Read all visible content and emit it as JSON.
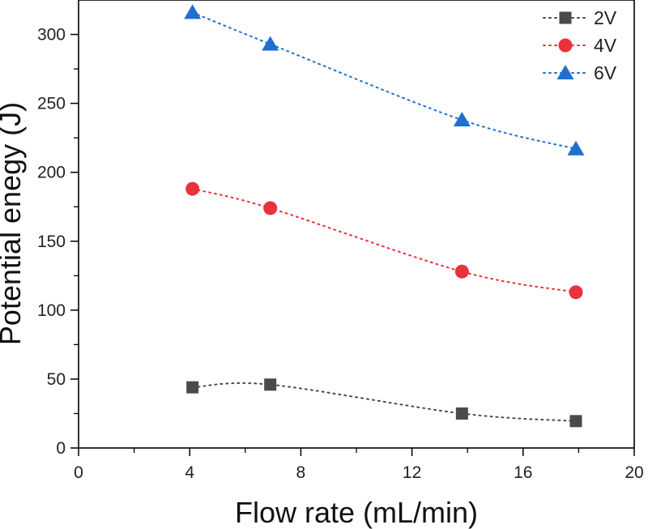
{
  "chart_data": {
    "type": "scatter",
    "xlabel": "Flow rate (mL/min)",
    "ylabel": "Potential enegy (J)",
    "xlim": [
      0,
      20
    ],
    "ylim": [
      0,
      325
    ],
    "x_ticks": [
      0,
      4,
      8,
      12,
      16,
      20
    ],
    "x_minor_ticks": [
      2,
      6,
      10,
      14,
      18
    ],
    "y_ticks": [
      0,
      50,
      100,
      150,
      200,
      250,
      300
    ],
    "y_minor_ticks": [
      25,
      75,
      125,
      175,
      225,
      275
    ],
    "grid": false,
    "legend_position": "top-right",
    "line_style": "dotted",
    "series": [
      {
        "name": "2V",
        "marker": "square",
        "color": "#4a4a4a",
        "x": [
          4.1,
          6.9,
          13.8,
          17.9
        ],
        "y": [
          44,
          46,
          25,
          19.5
        ]
      },
      {
        "name": "4V",
        "marker": "circle",
        "color": "#e8323c",
        "x": [
          4.1,
          6.9,
          13.8,
          17.9
        ],
        "y": [
          188,
          174,
          128,
          113
        ]
      },
      {
        "name": "6V",
        "marker": "triangle",
        "color": "#1f6fd0",
        "x": [
          4.1,
          6.9,
          13.8,
          17.9
        ],
        "y": [
          316,
          293,
          238,
          217
        ]
      }
    ]
  }
}
